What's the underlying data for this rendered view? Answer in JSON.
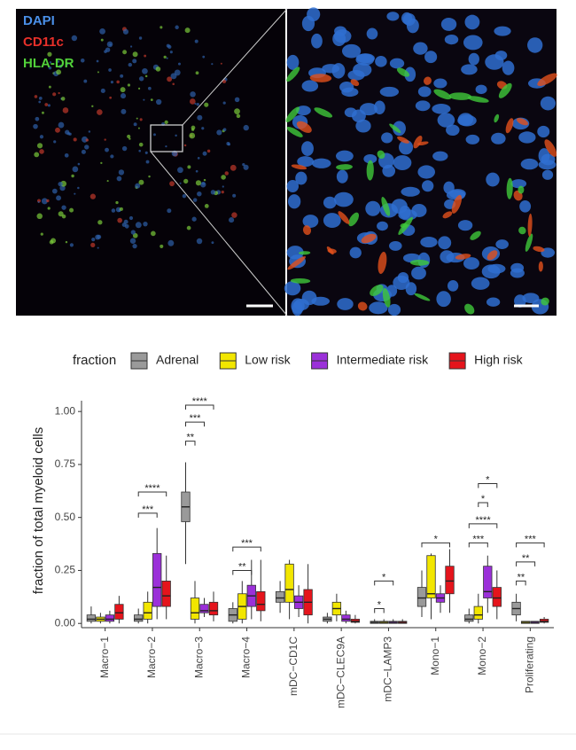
{
  "image_labels": [
    "DAPI",
    "CD11c",
    "HLA-DR"
  ],
  "chart_data": {
    "type": "box",
    "y_label": "fraction of total myeloid cells",
    "legend_title": "fraction",
    "legend_position": "top",
    "ylim": [
      -0.02,
      1.03
    ],
    "yticks": [
      {
        "value": 0,
        "label": "0.00"
      },
      {
        "value": 0.25,
        "label": "0.25"
      },
      {
        "value": 0.5,
        "label": "0.50"
      },
      {
        "value": 0.75,
        "label": "0.75"
      },
      {
        "value": 1,
        "label": "1.00"
      }
    ],
    "categories": [
      "Macro−1",
      "Macro−2",
      "Macro−3",
      "Macro−4",
      "mDC−CD1C",
      "mDC−CLEC9A",
      "mDC−LAMP3",
      "Mono−1",
      "Mono−2",
      "Proliferating"
    ],
    "series": [
      {
        "name": "Adrenal",
        "color": "#9a9a9a",
        "values": [
          [
            0,
            0.01,
            0.02,
            0.04,
            0.08
          ],
          [
            0,
            0.01,
            0.02,
            0.04,
            0.07
          ],
          [
            0.28,
            0.48,
            0.55,
            0.62,
            0.76
          ],
          [
            0,
            0.01,
            0.04,
            0.07,
            0.1
          ],
          [
            0.05,
            0.1,
            0.12,
            0.15,
            0.2
          ],
          [
            0,
            0.01,
            0.02,
            0.03,
            0.05
          ],
          [
            0,
            0,
            0.005,
            0.01,
            0.02
          ],
          [
            0.03,
            0.08,
            0.12,
            0.17,
            0.25
          ],
          [
            0,
            0.01,
            0.02,
            0.04,
            0.07
          ],
          [
            0.01,
            0.04,
            0.07,
            0.1,
            0.14
          ]
        ]
      },
      {
        "name": "Low risk",
        "color": "#f2e600",
        "values": [
          [
            0,
            0.01,
            0.02,
            0.03,
            0.05
          ],
          [
            0,
            0.02,
            0.05,
            0.1,
            0.15
          ],
          [
            0,
            0.02,
            0.05,
            0.12,
            0.2
          ],
          [
            0,
            0.02,
            0.08,
            0.14,
            0.2
          ],
          [
            0.02,
            0.1,
            0.16,
            0.28,
            0.3
          ],
          [
            0.01,
            0.04,
            0.07,
            0.1,
            0.14
          ],
          [
            0,
            0,
            0.005,
            0.01,
            0.02
          ],
          [
            0.02,
            0.12,
            0.14,
            0.32,
            0.33
          ],
          [
            0,
            0.02,
            0.04,
            0.08,
            0.14
          ],
          [
            0,
            0,
            0.005,
            0.01,
            0.01
          ]
        ]
      },
      {
        "name": "Intermediate risk",
        "color": "#9b30d9",
        "values": [
          [
            0,
            0.01,
            0.02,
            0.04,
            0.06
          ],
          [
            0.02,
            0.08,
            0.17,
            0.33,
            0.45
          ],
          [
            0.03,
            0.05,
            0.06,
            0.09,
            0.12
          ],
          [
            0.02,
            0.08,
            0.13,
            0.18,
            0.3
          ],
          [
            0.03,
            0.07,
            0.1,
            0.13,
            0.18
          ],
          [
            0,
            0.01,
            0.02,
            0.04,
            0.06
          ],
          [
            0,
            0,
            0.005,
            0.01,
            0.02
          ],
          [
            0.05,
            0.1,
            0.12,
            0.14,
            0.18
          ],
          [
            0.05,
            0.12,
            0.15,
            0.27,
            0.32
          ],
          [
            0,
            0,
            0.005,
            0.01,
            0.01
          ]
        ]
      },
      {
        "name": "High risk",
        "color": "#e5141c",
        "values": [
          [
            0,
            0.02,
            0.05,
            0.09,
            0.13
          ],
          [
            0.02,
            0.08,
            0.13,
            0.2,
            0.32
          ],
          [
            0.01,
            0.04,
            0.06,
            0.1,
            0.15
          ],
          [
            0.01,
            0.06,
            0.09,
            0.15,
            0.3
          ],
          [
            0,
            0.04,
            0.1,
            0.16,
            0.28
          ],
          [
            0,
            0.005,
            0.01,
            0.02,
            0.04
          ],
          [
            0,
            0,
            0.005,
            0.01,
            0.02
          ],
          [
            0.05,
            0.14,
            0.2,
            0.27,
            0.35
          ],
          [
            0.02,
            0.08,
            0.12,
            0.17,
            0.25
          ],
          [
            0,
            0.005,
            0.01,
            0.02,
            0.03
          ]
        ]
      }
    ],
    "significance": [
      {
        "category": "Macro−2",
        "from": "Adrenal",
        "to": "Intermediate risk",
        "y": 0.52,
        "label": "***"
      },
      {
        "category": "Macro−2",
        "from": "Adrenal",
        "to": "High risk",
        "y": 0.62,
        "label": "****"
      },
      {
        "category": "Macro−3",
        "from": "Adrenal",
        "to": "Low risk",
        "y": 0.86,
        "label": "**"
      },
      {
        "category": "Macro−3",
        "from": "Adrenal",
        "to": "Intermediate risk",
        "y": 0.95,
        "label": "***"
      },
      {
        "category": "Macro−3",
        "from": "Adrenal",
        "to": "High risk",
        "y": 1.03,
        "label": "****"
      },
      {
        "category": "Macro−4",
        "from": "Adrenal",
        "to": "Intermediate risk",
        "y": 0.25,
        "label": "**"
      },
      {
        "category": "Macro−4",
        "from": "Adrenal",
        "to": "High risk",
        "y": 0.36,
        "label": "***"
      },
      {
        "category": "mDC−LAMP3",
        "from": "Adrenal",
        "to": "Low risk",
        "y": 0.07,
        "label": "*"
      },
      {
        "category": "mDC−LAMP3",
        "from": "Adrenal",
        "to": "Intermediate risk",
        "y": 0.2,
        "label": "*"
      },
      {
        "category": "Mono−1",
        "from": "Adrenal",
        "to": "High risk",
        "y": 0.38,
        "label": "*"
      },
      {
        "category": "Mono−2",
        "from": "Adrenal",
        "to": "Intermediate risk",
        "y": 0.38,
        "label": "***"
      },
      {
        "category": "Mono−2",
        "from": "Adrenal",
        "to": "High risk",
        "y": 0.47,
        "label": "****"
      },
      {
        "category": "Mono−2",
        "from": "Low risk",
        "to": "Intermediate risk",
        "y": 0.57,
        "label": "*"
      },
      {
        "category": "Mono−2",
        "from": "Low risk",
        "to": "High risk",
        "y": 0.66,
        "label": "*"
      },
      {
        "category": "Proliferating",
        "from": "Adrenal",
        "to": "Low risk",
        "y": 0.2,
        "label": "**"
      },
      {
        "category": "Proliferating",
        "from": "Adrenal",
        "to": "Intermediate risk",
        "y": 0.29,
        "label": "**"
      },
      {
        "category": "Proliferating",
        "from": "Adrenal",
        "to": "High risk",
        "y": 0.38,
        "label": "***"
      }
    ]
  }
}
